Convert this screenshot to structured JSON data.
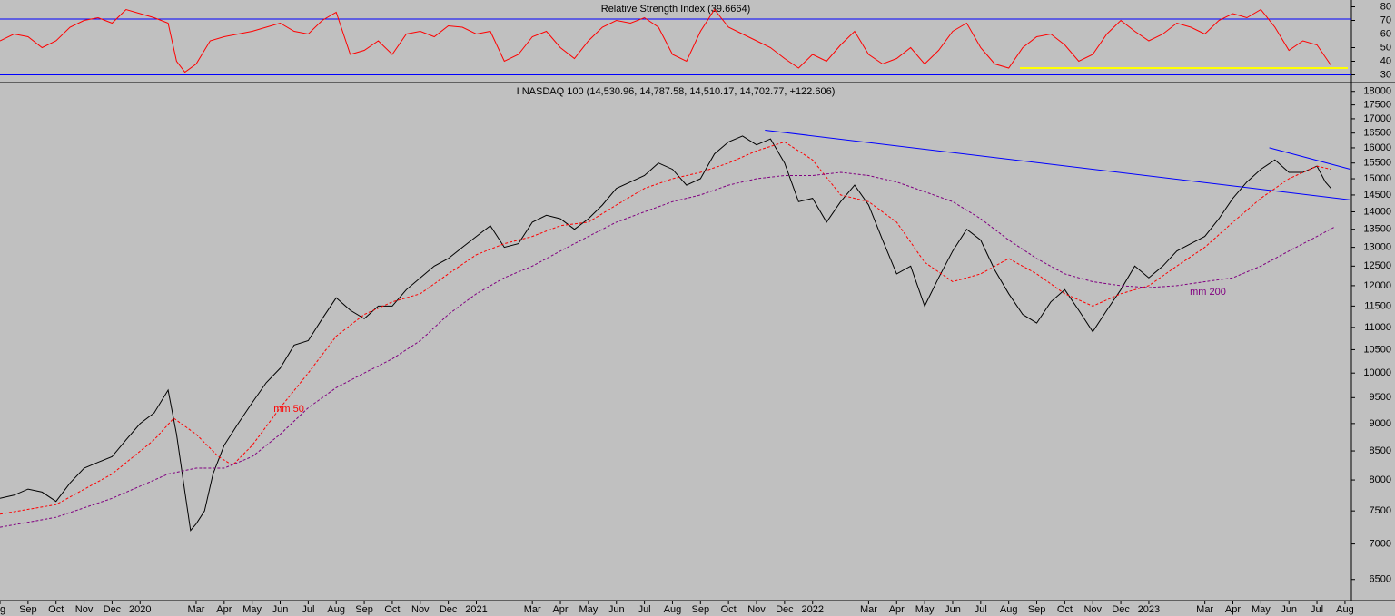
{
  "chart_data": [
    {
      "type": "line",
      "title": "Relative Strength Index (39.6664)",
      "ylim": [
        25,
        85
      ],
      "yticks": [
        30,
        40,
        50,
        60,
        70,
        80
      ],
      "xlim": [
        0,
        48.23
      ],
      "levels": [
        {
          "value": 71,
          "color": "#0000ff"
        },
        {
          "value": 30,
          "color": "#0000ff"
        }
      ],
      "lines": [
        {
          "color": "#ffff00",
          "x": [
            36.4,
            48.1
          ],
          "values": [
            35,
            35
          ]
        }
      ],
      "series": [
        {
          "color": "#ff0000",
          "x": [
            0,
            0.5,
            1,
            1.5,
            2,
            2.5,
            3,
            3.5,
            4,
            4.5,
            5,
            5.5,
            6,
            6.3,
            6.6,
            7,
            7.5,
            8,
            8.5,
            9,
            9.5,
            10,
            10.5,
            11,
            11.5,
            12,
            12.5,
            13,
            13.5,
            14,
            14.5,
            15,
            15.5,
            16,
            16.5,
            17,
            17.5,
            18,
            18.5,
            19,
            19.5,
            20,
            20.5,
            21,
            21.5,
            22,
            22.5,
            23,
            23.5,
            24,
            24.5,
            25,
            25.5,
            26,
            26.5,
            27,
            27.5,
            28,
            28.5,
            29,
            29.5,
            30,
            30.5,
            31,
            31.5,
            32,
            32.5,
            33,
            33.5,
            34,
            34.5,
            35,
            35.5,
            36,
            36.5,
            37,
            37.5,
            38,
            38.5,
            39,
            39.5,
            40,
            40.5,
            41,
            41.5,
            42,
            42.5,
            43,
            43.5,
            44,
            44.5,
            45,
            45.5,
            46,
            46.5,
            47,
            47.5
          ],
          "values": [
            55,
            60,
            58,
            50,
            55,
            65,
            70,
            72,
            68,
            78,
            75,
            72,
            68,
            40,
            32,
            38,
            55,
            58,
            60,
            62,
            65,
            68,
            62,
            60,
            70,
            76,
            45,
            48,
            55,
            45,
            60,
            62,
            58,
            66,
            65,
            60,
            62,
            40,
            45,
            58,
            62,
            50,
            42,
            55,
            65,
            70,
            68,
            72,
            65,
            45,
            40,
            62,
            78,
            65,
            60,
            55,
            50,
            42,
            35,
            45,
            40,
            52,
            62,
            45,
            38,
            42,
            50,
            38,
            48,
            62,
            68,
            50,
            38,
            35,
            50,
            58,
            60,
            52,
            40,
            45,
            60,
            70,
            62,
            55,
            60,
            68,
            65,
            60,
            70,
            75,
            72,
            78,
            65,
            48,
            55,
            52,
            37
          ]
        }
      ]
    },
    {
      "type": "line",
      "title": "I NASDAQ 100 (14,530.96, 14,787.58, 14,510.17, 14,702.77, +122.606)",
      "log_scale": true,
      "ylim": [
        6220,
        18300
      ],
      "yticks": [
        6500,
        7000,
        7500,
        8000,
        8500,
        9000,
        9500,
        10000,
        10500,
        11000,
        11500,
        12000,
        12500,
        13000,
        13500,
        14000,
        14500,
        15000,
        15500,
        16000,
        16500,
        17000,
        17500,
        18000
      ],
      "xlim": [
        0,
        48.23
      ],
      "xticks": [
        {
          "value": 0,
          "label": "ug"
        },
        {
          "value": 1,
          "label": "Sep"
        },
        {
          "value": 2,
          "label": "Oct"
        },
        {
          "value": 3,
          "label": "Nov"
        },
        {
          "value": 4,
          "label": "Dec"
        },
        {
          "value": 5,
          "label": "2020"
        },
        {
          "value": 7,
          "label": "Mar"
        },
        {
          "value": 8,
          "label": "Apr"
        },
        {
          "value": 9,
          "label": "May"
        },
        {
          "value": 10,
          "label": "Jun"
        },
        {
          "value": 11,
          "label": "Jul"
        },
        {
          "value": 12,
          "label": "Aug"
        },
        {
          "value": 13,
          "label": "Sep"
        },
        {
          "value": 14,
          "label": "Oct"
        },
        {
          "value": 15,
          "label": "Nov"
        },
        {
          "value": 16,
          "label": "Dec"
        },
        {
          "value": 17,
          "label": "2021"
        },
        {
          "value": 19,
          "label": "Mar"
        },
        {
          "value": 20,
          "label": "Apr"
        },
        {
          "value": 21,
          "label": "May"
        },
        {
          "value": 22,
          "label": "Jun"
        },
        {
          "value": 23,
          "label": "Jul"
        },
        {
          "value": 24,
          "label": "Aug"
        },
        {
          "value": 25,
          "label": "Sep"
        },
        {
          "value": 26,
          "label": "Oct"
        },
        {
          "value": 27,
          "label": "Nov"
        },
        {
          "value": 28,
          "label": "Dec"
        },
        {
          "value": 29,
          "label": "2022"
        },
        {
          "value": 31,
          "label": "Mar"
        },
        {
          "value": 32,
          "label": "Apr"
        },
        {
          "value": 33,
          "label": "May"
        },
        {
          "value": 34,
          "label": "Jun"
        },
        {
          "value": 35,
          "label": "Jul"
        },
        {
          "value": 36,
          "label": "Aug"
        },
        {
          "value": 37,
          "label": "Sep"
        },
        {
          "value": 38,
          "label": "Oct"
        },
        {
          "value": 39,
          "label": "Nov"
        },
        {
          "value": 40,
          "label": "Dec"
        },
        {
          "value": 41,
          "label": "2023"
        },
        {
          "value": 43,
          "label": "Mar"
        },
        {
          "value": 44,
          "label": "Apr"
        },
        {
          "value": 45,
          "label": "May"
        },
        {
          "value": 46,
          "label": "Jun"
        },
        {
          "value": 47,
          "label": "Jul"
        },
        {
          "value": 48,
          "label": "Aug"
        }
      ],
      "annotations": [
        "mm 50",
        "mm 200"
      ],
      "lines": [
        {
          "color": "#0000ff",
          "x": [
            27.3,
            48.2
          ],
          "values": [
            16600,
            14350
          ]
        },
        {
          "color": "#0000ff",
          "x": [
            45.3,
            48.2
          ],
          "values": [
            16000,
            15300
          ]
        }
      ],
      "series": [
        {
          "color": "#000000",
          "x": [
            0,
            0.5,
            1,
            1.5,
            2,
            2.5,
            3,
            3.5,
            4,
            4.5,
            5,
            5.5,
            6,
            6.3,
            6.6,
            6.8,
            7,
            7.3,
            7.6,
            8,
            8.5,
            9,
            9.5,
            10,
            10.5,
            11,
            11.5,
            12,
            12.5,
            13,
            13.5,
            14,
            14.5,
            15,
            15.5,
            16,
            16.5,
            17,
            17.5,
            18,
            18.5,
            19,
            19.5,
            20,
            20.5,
            21,
            21.5,
            22,
            22.5,
            23,
            23.5,
            24,
            24.5,
            25,
            25.5,
            26,
            26.5,
            27,
            27.5,
            28,
            28.5,
            29,
            29.5,
            30,
            30.5,
            31,
            31.5,
            32,
            32.5,
            33,
            33.5,
            34,
            34.5,
            35,
            35.5,
            36,
            36.5,
            37,
            37.5,
            38,
            38.5,
            39,
            39.5,
            40,
            40.5,
            41,
            41.5,
            42,
            42.5,
            43,
            43.5,
            44,
            44.5,
            45,
            45.5,
            46,
            46.5,
            47,
            47.3,
            47.5
          ],
          "values": [
            7700,
            7750,
            7850,
            7800,
            7650,
            7950,
            8200,
            8300,
            8400,
            8700,
            9000,
            9200,
            9650,
            8800,
            7800,
            7200,
            7300,
            7500,
            8100,
            8600,
            9000,
            9400,
            9800,
            10100,
            10600,
            10700,
            11200,
            11700,
            11400,
            11200,
            11500,
            11500,
            11900,
            12200,
            12500,
            12700,
            13000,
            13300,
            13600,
            13000,
            13100,
            13700,
            13900,
            13800,
            13500,
            13800,
            14200,
            14700,
            14900,
            15100,
            15500,
            15300,
            14800,
            15000,
            15800,
            16200,
            16400,
            16100,
            16300,
            15500,
            14300,
            14400,
            13700,
            14300,
            14800,
            14200,
            13200,
            12300,
            12500,
            11500,
            12200,
            12900,
            13500,
            13200,
            12400,
            11800,
            11300,
            11100,
            11600,
            11900,
            11400,
            10900,
            11400,
            11900,
            12500,
            12200,
            12500,
            12900,
            13100,
            13300,
            13800,
            14400,
            14900,
            15300,
            15600,
            15200,
            15200,
            15400,
            14900,
            14700
          ]
        },
        {
          "color": "#ff0000",
          "dashed": true,
          "x": [
            0,
            2,
            4,
            5.5,
            6.2,
            7,
            7.8,
            8.3,
            9,
            10,
            11,
            12,
            13,
            14,
            15,
            16,
            17,
            18,
            19,
            20,
            21,
            22,
            23,
            24,
            25,
            26,
            27,
            28,
            29,
            30,
            31,
            32,
            33,
            34,
            35,
            36,
            37,
            38,
            39,
            40,
            41,
            42,
            43,
            44,
            45,
            46,
            47,
            47.5
          ],
          "values": [
            7450,
            7600,
            8100,
            8700,
            9100,
            8800,
            8400,
            8250,
            8600,
            9300,
            10000,
            10800,
            11300,
            11600,
            11800,
            12300,
            12800,
            13100,
            13300,
            13600,
            13700,
            14200,
            14700,
            15000,
            15200,
            15500,
            15900,
            16200,
            15600,
            14500,
            14300,
            13700,
            12600,
            12100,
            12300,
            12700,
            12300,
            11800,
            11500,
            11800,
            12000,
            12500,
            13000,
            13700,
            14400,
            15000,
            15400,
            15300
          ]
        },
        {
          "color": "#800080",
          "dashed": true,
          "x": [
            0,
            2,
            4,
            6,
            7,
            8,
            9,
            10,
            11,
            12,
            13,
            14,
            15,
            16,
            17,
            18,
            19,
            20,
            21,
            22,
            23,
            24,
            25,
            26,
            27,
            28,
            29,
            30,
            31,
            32,
            33,
            34,
            35,
            36,
            37,
            38,
            39,
            40,
            41,
            42,
            43,
            44,
            45,
            46,
            47,
            47.6
          ],
          "values": [
            7250,
            7400,
            7700,
            8100,
            8200,
            8200,
            8400,
            8800,
            9300,
            9700,
            10000,
            10300,
            10700,
            11300,
            11800,
            12200,
            12500,
            12900,
            13300,
            13700,
            14000,
            14300,
            14500,
            14800,
            15000,
            15100,
            15100,
            15200,
            15100,
            14900,
            14600,
            14300,
            13800,
            13200,
            12700,
            12300,
            12100,
            12000,
            11950,
            12000,
            12100,
            12200,
            12500,
            12900,
            13300,
            13550
          ]
        }
      ]
    }
  ]
}
